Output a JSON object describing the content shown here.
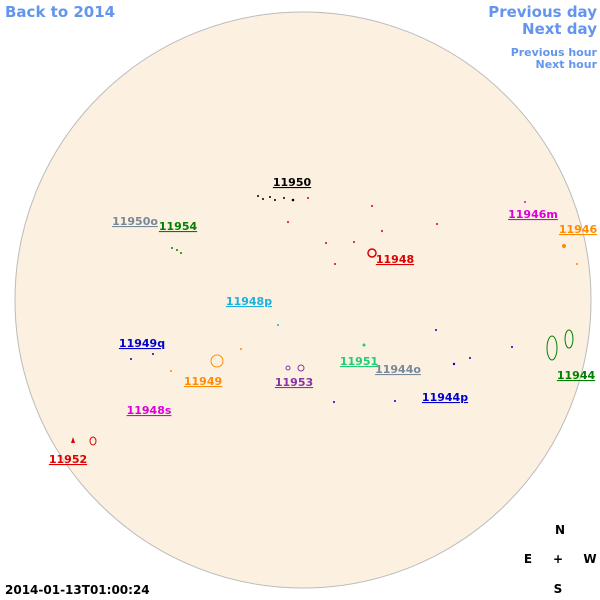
{
  "navigation": {
    "back": "Back to 2014",
    "previous_day": "Previous day",
    "next_day": "Next day",
    "previous_hour": "Previous hour",
    "next_hour": "Next hour"
  },
  "regions": [
    {
      "label": "11950",
      "color": "#000000"
    },
    {
      "label": "11950o",
      "color": "#778899"
    },
    {
      "label": "11954",
      "color": "#008000"
    },
    {
      "label": "11946m",
      "color": "#dd00dd"
    },
    {
      "label": "11946",
      "color": "#ff8c00"
    },
    {
      "label": "11948",
      "color": "#dd0000"
    },
    {
      "label": "11948p",
      "color": "#1ab0e0"
    },
    {
      "label": "11949q",
      "color": "#0000cc"
    },
    {
      "label": "11951",
      "color": "#22cc77"
    },
    {
      "label": "11944o",
      "color": "#778899"
    },
    {
      "label": "11949",
      "color": "#ff8c00"
    },
    {
      "label": "11953",
      "color": "#8833aa"
    },
    {
      "label": "11944",
      "color": "#008000"
    },
    {
      "label": "11944p",
      "color": "#0000cc"
    },
    {
      "label": "11948s",
      "color": "#dd00dd"
    },
    {
      "label": "11952",
      "color": "#dd0000"
    }
  ],
  "compass": {
    "north": "N",
    "east": "E",
    "center": "+",
    "west": "W",
    "south": "S"
  },
  "timestamp": "2014-01-13T01:00:24"
}
